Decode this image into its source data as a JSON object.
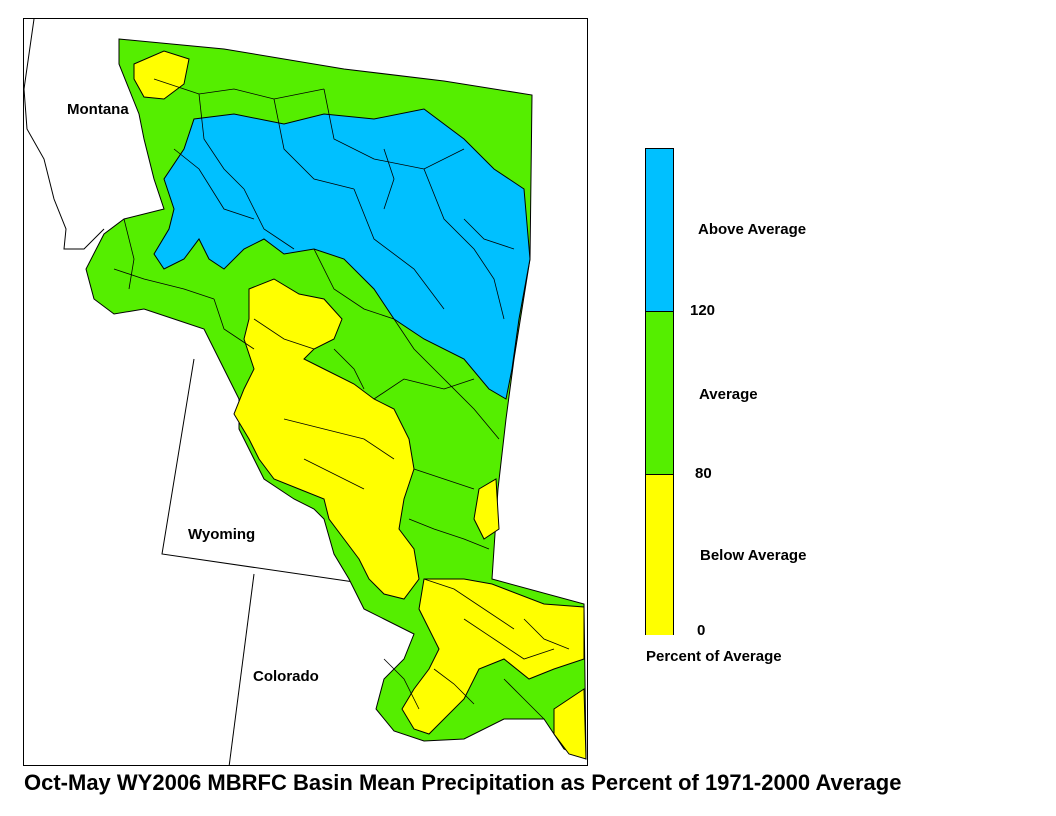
{
  "title": "Oct-May WY2006 MBRFC Basin Mean Precipitation as Percent of 1971-2000 Average",
  "map": {
    "state_labels": {
      "montana": "Montana",
      "wyoming": "Wyoming",
      "colorado": "Colorado"
    },
    "colors": {
      "above": "#00c0ff",
      "average": "#55ee00",
      "below": "#ffff00",
      "boundary": "#000000"
    }
  },
  "legend": {
    "categories": [
      {
        "label": "Above Average",
        "color": "#00c0ff",
        "range_min": 120,
        "range_max": null
      },
      {
        "label": "Average",
        "color": "#55ee00",
        "range_min": 80,
        "range_max": 120
      },
      {
        "label": "Below Average",
        "color": "#ffff00",
        "range_min": 0,
        "range_max": 80
      }
    ],
    "thresholds": {
      "t120": "120",
      "t80": "80",
      "t0": "0"
    },
    "caption": "Percent of Average"
  }
}
